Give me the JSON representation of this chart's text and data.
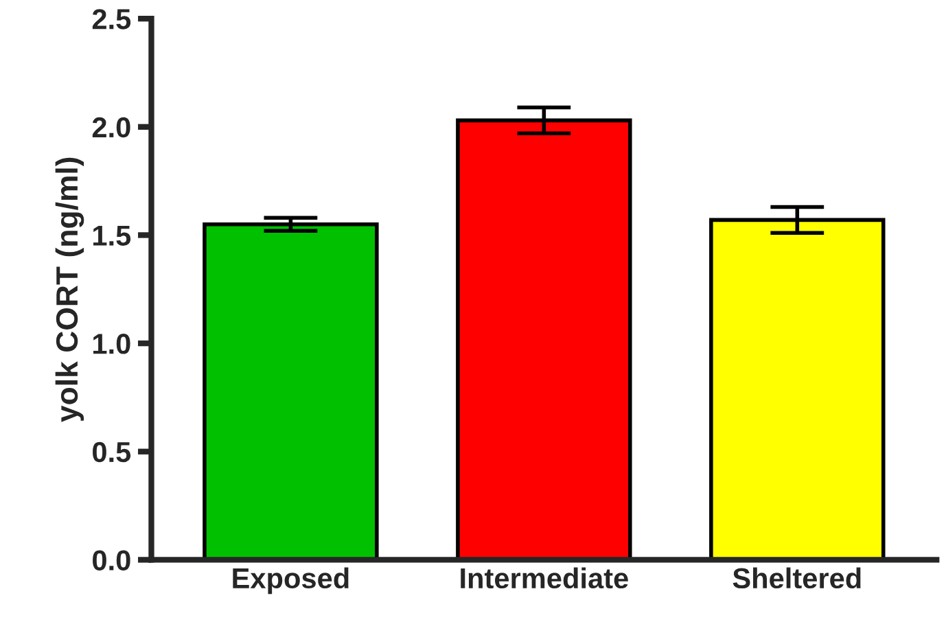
{
  "chart_data": {
    "type": "bar",
    "ylabel": "yolk CORT (ng/ml)",
    "categories": [
      "Exposed",
      "Intermediate",
      "Sheltered"
    ],
    "values": [
      1.55,
      2.03,
      1.57
    ],
    "errors": [
      0.03,
      0.06,
      0.06
    ],
    "colors": [
      "#00c000",
      "#ff0000",
      "#ffff00"
    ],
    "ylim": [
      0,
      2.5
    ],
    "yticks": [
      {
        "value": 0,
        "label": "0.0"
      },
      {
        "value": 0.5,
        "label": "0.5"
      },
      {
        "value": 1.0,
        "label": "1.0"
      },
      {
        "value": 1.5,
        "label": "1.5"
      },
      {
        "value": 2.0,
        "label": "2.0"
      },
      {
        "value": 2.5,
        "label": "2.5"
      }
    ],
    "grid": false,
    "legend": false
  }
}
